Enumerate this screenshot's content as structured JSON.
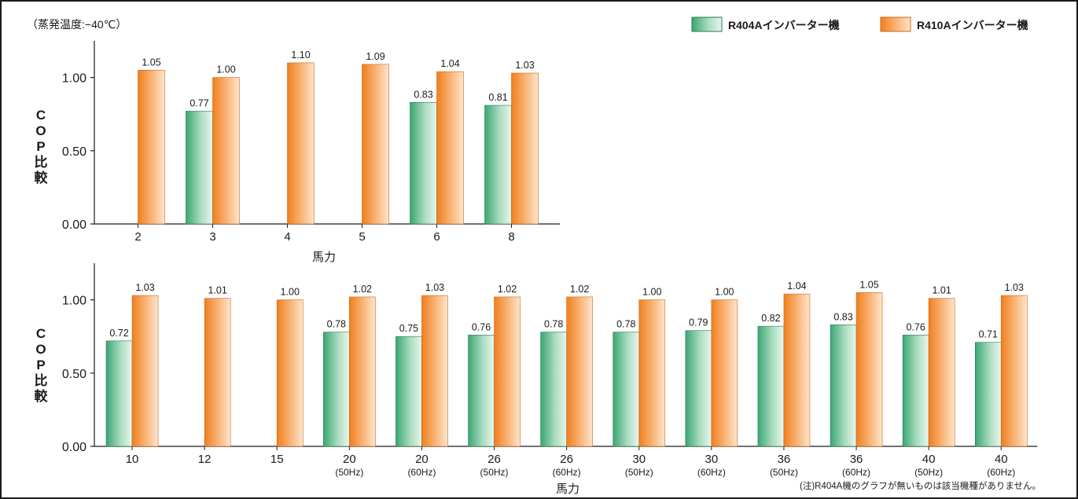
{
  "condition": "（蒸発温度:−40℃）",
  "legend": [
    {
      "label": "R404Aインバーター機",
      "color": "#5fb88a"
    },
    {
      "label": "R410Aインバーター機",
      "color": "#f59c3c"
    }
  ],
  "note": "(注)R404A機のグラフが無いものは該当機種がありません。",
  "chart_data": [
    {
      "type": "bar",
      "ylabel": "COP比較",
      "xlabel": "馬力",
      "ylim": [
        0,
        1.25
      ],
      "yticks": [
        "0.00",
        "0.50",
        "1.00"
      ],
      "categories": [
        {
          "label": "2",
          "sub": ""
        },
        {
          "label": "3",
          "sub": ""
        },
        {
          "label": "4",
          "sub": ""
        },
        {
          "label": "5",
          "sub": ""
        },
        {
          "label": "6",
          "sub": ""
        },
        {
          "label": "8",
          "sub": ""
        }
      ],
      "series": [
        {
          "name": "R404Aインバーター機",
          "values": [
            null,
            0.77,
            null,
            null,
            0.83,
            0.81
          ],
          "labels": [
            "",
            "0.77",
            "",
            "",
            "0.83",
            "0.81"
          ]
        },
        {
          "name": "R410Aインバーター機",
          "values": [
            1.05,
            1.0,
            1.1,
            1.09,
            1.04,
            1.03
          ],
          "labels": [
            "1.05",
            "1.00",
            "1.10",
            "1.09",
            "1.04",
            "1.03"
          ]
        }
      ]
    },
    {
      "type": "bar",
      "ylabel": "COP比較",
      "xlabel": "馬力",
      "ylim": [
        0,
        1.25
      ],
      "yticks": [
        "0.00",
        "0.50",
        "1.00"
      ],
      "categories": [
        {
          "label": "10",
          "sub": ""
        },
        {
          "label": "12",
          "sub": ""
        },
        {
          "label": "15",
          "sub": ""
        },
        {
          "label": "20",
          "sub": "(50Hz)"
        },
        {
          "label": "20",
          "sub": "(60Hz)"
        },
        {
          "label": "26",
          "sub": "(50Hz)"
        },
        {
          "label": "26",
          "sub": "(60Hz)"
        },
        {
          "label": "30",
          "sub": "(50Hz)"
        },
        {
          "label": "30",
          "sub": "(60Hz)"
        },
        {
          "label": "36",
          "sub": "(50Hz)"
        },
        {
          "label": "36",
          "sub": "(60Hz)"
        },
        {
          "label": "40",
          "sub": "(50Hz)"
        },
        {
          "label": "40",
          "sub": "(60Hz)"
        }
      ],
      "series": [
        {
          "name": "R404Aインバーター機",
          "values": [
            0.72,
            null,
            null,
            0.78,
            0.75,
            0.76,
            0.78,
            0.78,
            0.79,
            0.82,
            0.83,
            0.76,
            0.71
          ],
          "labels": [
            "0.72",
            "",
            "",
            "0.78",
            "0.75",
            "0.76",
            "0.78",
            "0.78",
            "0.79",
            "0.82",
            "0.83",
            "0.76",
            "0.71"
          ]
        },
        {
          "name": "R410Aインバーター機",
          "values": [
            1.03,
            1.01,
            1.0,
            1.02,
            1.03,
            1.02,
            1.02,
            1.0,
            1.0,
            1.04,
            1.05,
            1.01,
            1.03
          ],
          "labels": [
            "1.03",
            "1.01",
            "1.00",
            "1.02",
            "1.03",
            "1.02",
            "1.02",
            "1.00",
            "1.00",
            "1.04",
            "1.05",
            "1.01",
            "1.03"
          ]
        }
      ]
    }
  ]
}
